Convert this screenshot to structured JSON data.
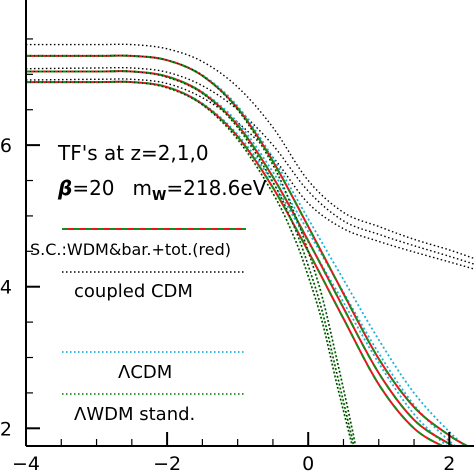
{
  "chart_data": {
    "type": "line",
    "title": "",
    "xlabel": "",
    "ylabel": "",
    "xlim": [
      -4,
      2.35
    ],
    "ylim": [
      1.75,
      8.05
    ],
    "x_ticks": [
      -4,
      -2,
      0,
      2
    ],
    "x_tick_labels": [
      "−4",
      "−2",
      "0",
      "2"
    ],
    "y_ticks": [
      2,
      4,
      6
    ],
    "y_tick_labels": [
      "2",
      "4",
      "6"
    ],
    "grid": false,
    "colors": {
      "red": "#e8141e",
      "green": "#1a8a1a",
      "cyan": "#18b4d8",
      "black": "#000000"
    },
    "annotations": {
      "title_line1": "TF's at z=2,1,0",
      "title_line2_beta_symbol": "β",
      "title_line2_beta_value": "=20",
      "title_line2_m": "m",
      "title_line2_m_sub": "W",
      "title_line2_m_value": "=218.6eV"
    },
    "legend": [
      {
        "label": "S.C.:WDM&bar.+tot.(red)",
        "style": "red-green-dashed"
      },
      {
        "label": "coupled CDM",
        "style": "black-dotted"
      },
      {
        "label": "ΛCDM",
        "style": "cyan-dotted"
      },
      {
        "label": "ΛWDM stand.",
        "style": "green-dotted"
      }
    ],
    "series": [
      {
        "group": "coupled-cdm",
        "style": "black-dotted",
        "x": [
          -4,
          -3,
          -2.5,
          -2.0,
          -1.5,
          -1.0,
          -0.5,
          0.0,
          0.5,
          1.0,
          1.5,
          2.0,
          2.35
        ],
        "y": [
          7.42,
          7.42,
          7.42,
          7.36,
          7.18,
          6.82,
          6.25,
          5.5,
          5.05,
          4.85,
          4.67,
          4.52,
          4.4
        ]
      },
      {
        "group": "coupled-cdm",
        "style": "black-dotted",
        "x": [
          -4,
          -3,
          -2.5,
          -2.0,
          -1.5,
          -1.0,
          -0.5,
          0.0,
          0.5,
          1.0,
          1.5,
          2.0,
          2.35
        ],
        "y": [
          7.08,
          7.09,
          7.09,
          7.03,
          6.84,
          6.5,
          6.0,
          5.35,
          4.93,
          4.74,
          4.58,
          4.43,
          4.32
        ]
      },
      {
        "group": "coupled-cdm",
        "style": "black-dotted",
        "x": [
          -4,
          -3,
          -2.5,
          -2.0,
          -1.5,
          -1.0,
          -0.5,
          0.0,
          0.5,
          1.0,
          1.5,
          2.0,
          2.35
        ],
        "y": [
          6.92,
          6.93,
          6.93,
          6.87,
          6.67,
          6.32,
          5.83,
          5.18,
          4.82,
          4.64,
          4.49,
          4.35,
          4.25
        ]
      },
      {
        "group": "lcdm",
        "style": "cyan-dotted",
        "x": [
          -4,
          -3,
          -2.5,
          -2.0,
          -1.5,
          -1.0,
          -0.5,
          0.0,
          0.5,
          1.0,
          1.5,
          2.0,
          2.35
        ],
        "y": [
          7.26,
          7.26,
          7.26,
          7.2,
          6.99,
          6.55,
          5.82,
          4.96,
          4.1,
          3.25,
          2.5,
          1.95,
          1.65
        ]
      },
      {
        "group": "lcdm",
        "style": "cyan-dotted",
        "x": [
          -4,
          -3,
          -2.5,
          -2.0,
          -1.5,
          -1.0,
          -0.5,
          0.0,
          0.5,
          1.0,
          1.5,
          2.0,
          2.35
        ],
        "y": [
          7.04,
          7.04,
          7.04,
          6.97,
          6.75,
          6.32,
          5.62,
          4.78,
          3.92,
          3.06,
          2.33,
          1.82,
          1.55
        ]
      },
      {
        "group": "lcdm",
        "style": "cyan-dotted",
        "x": [
          -4,
          -3,
          -2.5,
          -2.0,
          -1.5,
          -1.0,
          -0.5,
          0.0,
          0.5,
          1.0,
          1.5,
          2.0,
          2.35
        ],
        "y": [
          6.89,
          6.89,
          6.89,
          6.82,
          6.59,
          6.15,
          5.47,
          4.63,
          3.78,
          2.92,
          2.2,
          1.72,
          1.45
        ]
      },
      {
        "group": "sc-wdm",
        "style": "red-green-dashed",
        "x": [
          -4,
          -3,
          -2.5,
          -2.0,
          -1.5,
          -1.0,
          -0.5,
          0.0,
          0.5,
          1.0,
          1.5,
          2.0,
          2.35
        ],
        "y": [
          7.26,
          7.26,
          7.26,
          7.2,
          6.98,
          6.52,
          5.77,
          4.85,
          3.9,
          2.98,
          2.3,
          1.9,
          1.7
        ]
      },
      {
        "group": "sc-wdm",
        "style": "red-green-dashed",
        "x": [
          -4,
          -3,
          -2.5,
          -2.0,
          -1.5,
          -1.0,
          -0.5,
          0.0,
          0.5,
          1.0,
          1.5,
          2.0,
          2.35
        ],
        "y": [
          7.04,
          7.04,
          7.04,
          6.97,
          6.74,
          6.28,
          5.55,
          4.65,
          3.7,
          2.78,
          2.12,
          1.78,
          1.6
        ]
      },
      {
        "group": "sc-wdm",
        "style": "red-green-dashed",
        "x": [
          -4,
          -3,
          -2.5,
          -2.0,
          -1.5,
          -1.0,
          -0.5,
          0.0,
          0.5,
          1.0,
          1.5,
          2.0,
          2.35
        ],
        "y": [
          6.89,
          6.89,
          6.89,
          6.82,
          6.58,
          6.12,
          5.4,
          4.5,
          3.55,
          2.62,
          2.0,
          1.7,
          1.52
        ]
      },
      {
        "group": "lwdm",
        "style": "green-dotted",
        "x": [
          -4,
          -3,
          -2.5,
          -2.0,
          -1.5,
          -1.0,
          -0.5,
          -0.2,
          0.0,
          0.2,
          0.4,
          0.6,
          0.7
        ],
        "y": [
          7.26,
          7.26,
          7.26,
          7.2,
          6.98,
          6.5,
          5.72,
          5.05,
          4.5,
          3.85,
          3.0,
          2.1,
          1.6
        ]
      },
      {
        "group": "lwdm",
        "style": "green-dotted",
        "x": [
          -4,
          -3,
          -2.5,
          -2.0,
          -1.5,
          -1.0,
          -0.5,
          -0.2,
          0.0,
          0.2,
          0.4,
          0.6,
          0.7
        ],
        "y": [
          7.04,
          7.04,
          7.04,
          6.96,
          6.73,
          6.25,
          5.48,
          4.85,
          4.3,
          3.65,
          2.8,
          1.95,
          1.5
        ]
      },
      {
        "group": "lwdm",
        "style": "green-dotted",
        "x": [
          -4,
          -3,
          -2.5,
          -2.0,
          -1.5,
          -1.0,
          -0.5,
          -0.2,
          0.0,
          0.2,
          0.4,
          0.6,
          0.7
        ],
        "y": [
          6.89,
          6.89,
          6.89,
          6.81,
          6.57,
          6.08,
          5.32,
          4.7,
          4.15,
          3.5,
          2.65,
          1.85,
          1.45
        ]
      }
    ]
  }
}
